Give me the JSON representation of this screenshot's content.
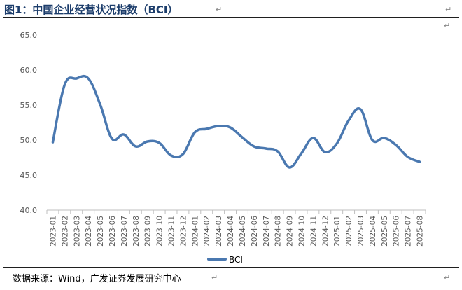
{
  "header": {
    "title": "图1：中国企业经营状况指数（BCI）"
  },
  "footer": {
    "source": "数据来源：Wind，广发证券发展研究中心"
  },
  "chart_data": {
    "type": "line",
    "title": "",
    "xlabel": "",
    "ylabel": "",
    "ylim": [
      40,
      65
    ],
    "yticks": [
      "40.0",
      "45.0",
      "50.0",
      "55.0",
      "60.0",
      "65.0"
    ],
    "grid": false,
    "legend": "bottom-center",
    "categories": [
      "2023-01",
      "2023-02",
      "2023-03",
      "2023-04",
      "2023-05",
      "2023-06",
      "2023-07",
      "2023-08",
      "2023-09",
      "2023-10",
      "2023-11",
      "2023-12",
      "2024-01",
      "2024-02",
      "2024-03",
      "2024-04",
      "2024-05",
      "2024-06",
      "2024-07",
      "2024-08",
      "2024-09",
      "2024-10",
      "2024-11",
      "2024-12",
      "2025-01",
      "2025-02",
      "2025-03",
      "2025-04",
      "2025-05",
      "2025-06",
      "2025-07",
      "2025-08"
    ],
    "series": [
      {
        "name": "BCI",
        "color": "#4a78b0",
        "values": [
          49.7,
          57.9,
          58.8,
          58.8,
          55.1,
          50.2,
          50.8,
          49.1,
          49.8,
          49.6,
          47.8,
          48.0,
          51.1,
          51.6,
          52.0,
          51.8,
          50.4,
          49.1,
          48.8,
          48.4,
          46.1,
          48.1,
          50.3,
          48.3,
          49.5,
          52.8,
          54.4,
          50.0,
          50.3,
          49.3,
          47.6,
          46.9
        ]
      }
    ]
  }
}
